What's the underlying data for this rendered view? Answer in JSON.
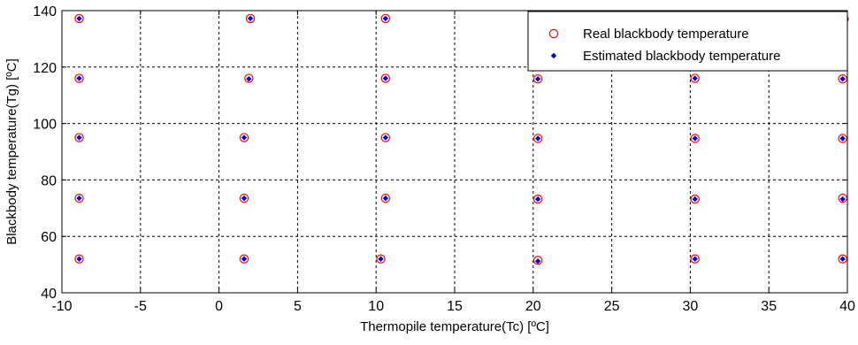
{
  "chart_data": {
    "type": "scatter",
    "xlabel": "Thermopile temperature(Tc) [ºC]",
    "ylabel": "Blackbody temperature(Tg) [ºC]",
    "xlim": [
      -10,
      40
    ],
    "ylim": [
      40,
      140
    ],
    "xticks": [
      "-10",
      "-5",
      "0",
      "5",
      "10",
      "15",
      "20",
      "25",
      "30",
      "35",
      "40"
    ],
    "yticks": [
      "40",
      "60",
      "80",
      "100",
      "120",
      "140"
    ],
    "grid": true,
    "legend_position": "top-right",
    "series": [
      {
        "name": "Real blackbody temperature",
        "marker": "circle-open",
        "color": "#ff0000",
        "points": [
          [
            -8.9,
            137.2
          ],
          [
            2.0,
            137.2
          ],
          [
            10.6,
            137.2
          ],
          [
            20.3,
            137.2
          ],
          [
            30.3,
            137.0
          ],
          [
            39.8,
            137.0
          ],
          [
            -8.9,
            116.0
          ],
          [
            1.9,
            116.0
          ],
          [
            10.6,
            116.0
          ],
          [
            20.3,
            115.8
          ],
          [
            30.3,
            116.0
          ],
          [
            39.7,
            115.8
          ],
          [
            -8.9,
            95.0
          ],
          [
            1.6,
            95.0
          ],
          [
            10.6,
            95.0
          ],
          [
            20.3,
            94.7
          ],
          [
            30.3,
            94.7
          ],
          [
            39.7,
            94.7
          ],
          [
            -8.9,
            73.5
          ],
          [
            1.6,
            73.5
          ],
          [
            10.6,
            73.5
          ],
          [
            20.3,
            73.2
          ],
          [
            30.3,
            73.2
          ],
          [
            39.7,
            73.5
          ],
          [
            -8.9,
            52.0
          ],
          [
            1.6,
            52.0
          ],
          [
            10.3,
            52.0
          ],
          [
            20.3,
            51.5
          ],
          [
            30.3,
            52.0
          ],
          [
            39.7,
            52.0
          ]
        ]
      },
      {
        "name": "Estimated blackbody temperature",
        "marker": "dot",
        "color": "#0000cc",
        "points": [
          [
            -8.9,
            137.2
          ],
          [
            2.0,
            137.2
          ],
          [
            10.6,
            137.2
          ],
          [
            20.3,
            137.0
          ],
          [
            30.3,
            137.0
          ],
          [
            39.8,
            137.0
          ],
          [
            -8.9,
            116.0
          ],
          [
            1.9,
            115.8
          ],
          [
            10.6,
            116.0
          ],
          [
            20.3,
            115.8
          ],
          [
            30.3,
            116.0
          ],
          [
            39.7,
            115.8
          ],
          [
            -8.9,
            95.0
          ],
          [
            1.6,
            95.0
          ],
          [
            10.6,
            95.0
          ],
          [
            20.3,
            94.7
          ],
          [
            30.3,
            94.7
          ],
          [
            39.7,
            94.7
          ],
          [
            -8.9,
            73.5
          ],
          [
            1.6,
            73.5
          ],
          [
            10.6,
            73.5
          ],
          [
            20.3,
            73.2
          ],
          [
            30.3,
            73.2
          ],
          [
            39.7,
            73.2
          ],
          [
            -8.9,
            52.0
          ],
          [
            1.6,
            52.0
          ],
          [
            10.3,
            52.0
          ],
          [
            20.3,
            51.2
          ],
          [
            30.3,
            52.0
          ],
          [
            39.7,
            52.0
          ]
        ]
      }
    ]
  }
}
